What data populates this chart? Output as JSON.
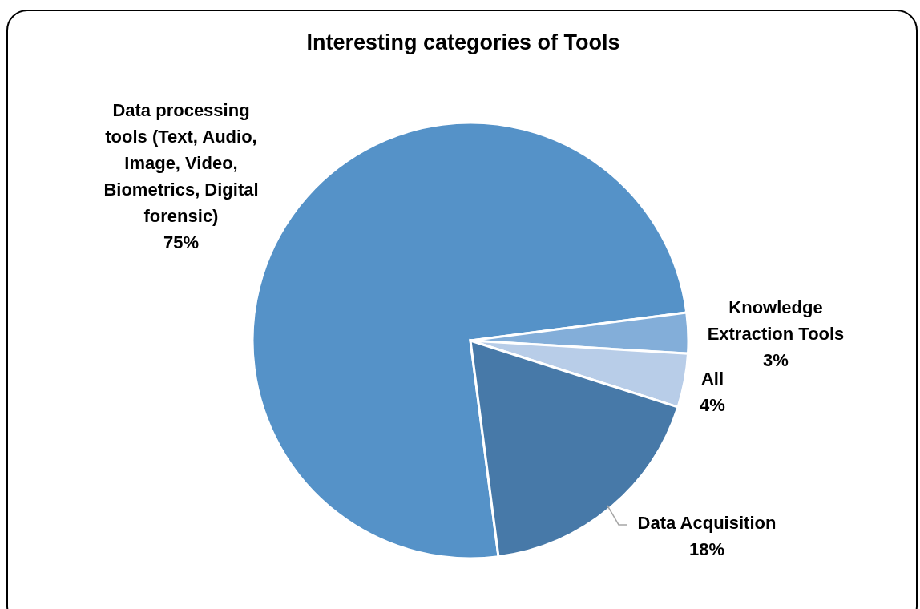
{
  "chart_data": {
    "type": "pie",
    "title": "Interesting categories of Tools",
    "categories": [
      "Data processing tools (Text, Audio, Image, Video, Biometrics, Digital forensic)",
      "Knowledge Extraction Tools",
      "All",
      "Data Acquisition"
    ],
    "values": [
      75,
      3,
      4,
      18
    ],
    "colors": [
      "#5592c8",
      "#83aed9",
      "#b8cde8",
      "#4779a8"
    ],
    "value_labels": [
      "75%",
      "3%",
      "4%",
      "18%"
    ]
  }
}
